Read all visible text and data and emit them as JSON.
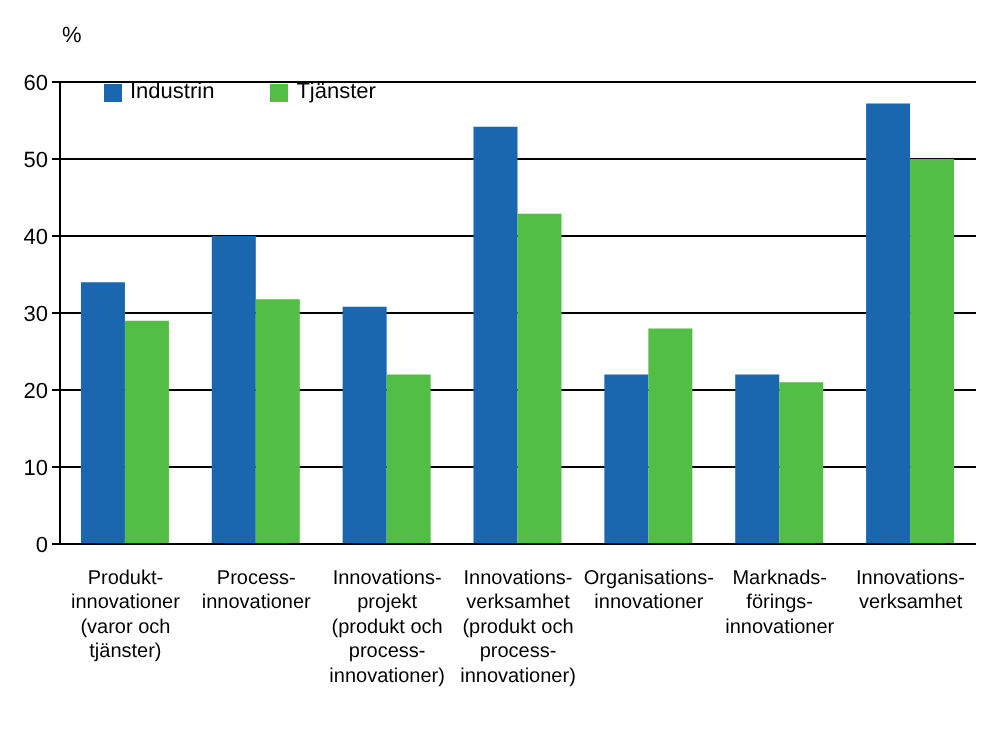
{
  "chart_data": {
    "type": "bar",
    "ylabel": "%",
    "categories": [
      "Produkt-\ninnovationer\n(varor och\ntjänster)",
      "Process-\ninnovationer",
      "Innovations-\nprojekt\n(produkt och\nprocess-\ninnovationer)",
      "Innovations-\nverksamhet\n(produkt och\nprocess-\ninnovationer)",
      "Organisations-\ninnovationer",
      "Marknads-\nförings-\ninnovationer",
      "Innovations-\nverksamhet"
    ],
    "series": [
      {
        "name": "Industrin",
        "color": "#1a67b0",
        "values": [
          34,
          40,
          30.8,
          54.2,
          22,
          22,
          57.2
        ]
      },
      {
        "name": "Tjänster",
        "color": "#52be45",
        "values": [
          29,
          31.8,
          22,
          42.9,
          28,
          21,
          50
        ]
      }
    ],
    "ylim": [
      0,
      60
    ],
    "yticks": [
      0,
      10,
      20,
      30,
      40,
      50,
      60
    ],
    "grid": "y",
    "legend": "top left"
  }
}
